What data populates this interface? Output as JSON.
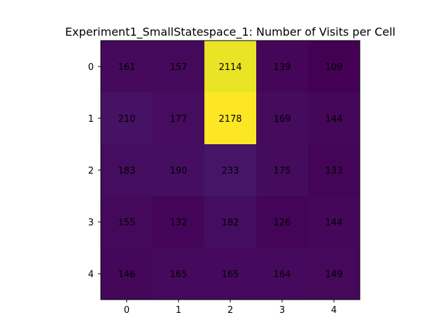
{
  "chart_data": {
    "type": "heatmap",
    "title": "Experiment1_SmallStatespace_1: Number of Visits per Cell",
    "xlabel": "",
    "ylabel": "",
    "x_ticks": [
      "0",
      "1",
      "2",
      "3",
      "4"
    ],
    "y_ticks": [
      "0",
      "1",
      "2",
      "3",
      "4"
    ],
    "values": [
      [
        161,
        157,
        2114,
        139,
        109
      ],
      [
        210,
        177,
        2178,
        169,
        144
      ],
      [
        183,
        190,
        233,
        175,
        133
      ],
      [
        155,
        132,
        182,
        126,
        144
      ],
      [
        146,
        165,
        165,
        164,
        149
      ]
    ],
    "colormap": "viridis",
    "grid": false,
    "legend": "none",
    "label_color": "#000000"
  }
}
